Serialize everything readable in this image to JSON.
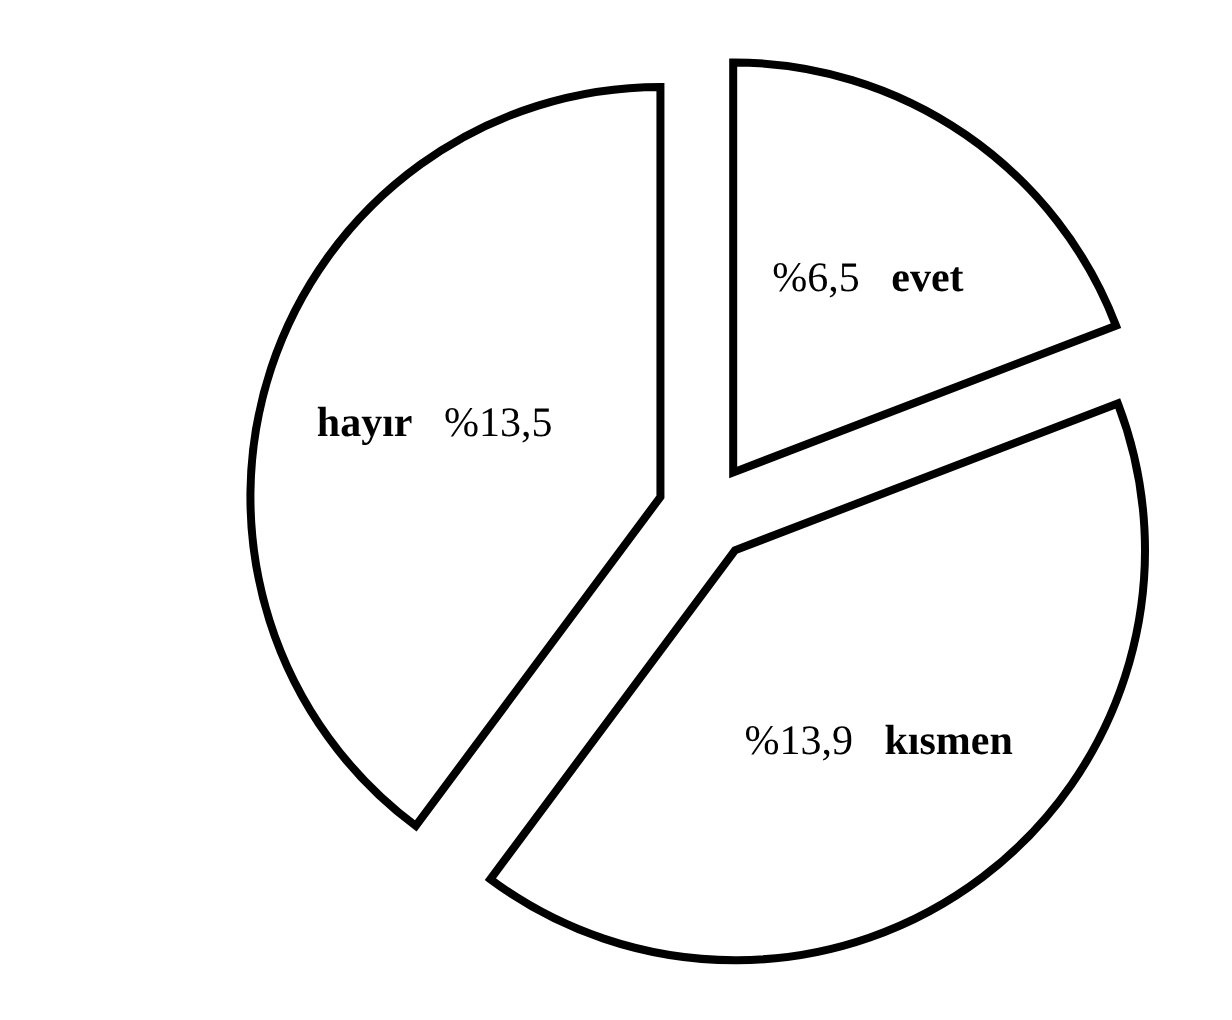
{
  "chart_data": {
    "type": "pie",
    "categories": [
      "evet",
      "kısmen",
      "hayır"
    ],
    "values": [
      6.5,
      13.9,
      13.5
    ],
    "value_labels": [
      "%6,5",
      "%13,9",
      "%13,5"
    ],
    "colors": [
      "#ffffff",
      "#ffffff",
      "#ffffff"
    ]
  }
}
